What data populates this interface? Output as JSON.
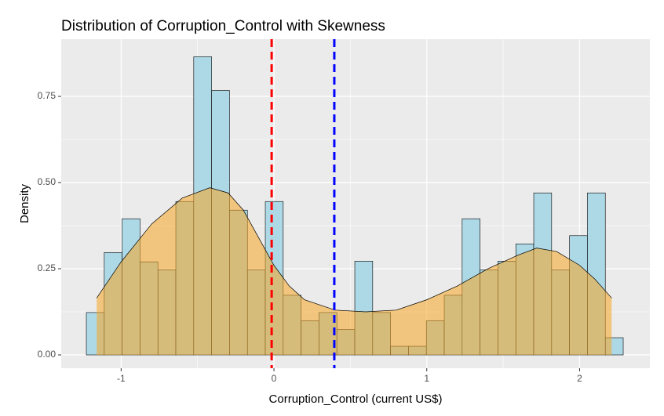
{
  "chart_data": {
    "type": "histogram",
    "title": "Distribution of Corruption_Control with Skewness",
    "x_label": "Corruption_Control (current US$)",
    "y_label": "Density",
    "bins": [
      -1.2275,
      -1.1104,
      -0.9933,
      -0.8762,
      -0.7591,
      -0.642,
      -0.5249,
      -0.4078,
      -0.2907,
      -0.1736,
      -0.0565,
      0.0606,
      0.1777,
      0.2948,
      0.4119,
      0.529,
      0.6461,
      0.7632,
      0.8803,
      0.9974,
      1.1145,
      1.2316,
      1.3487,
      1.4658,
      1.5829,
      1.7,
      1.8171,
      1.9342,
      2.0513,
      2.1684,
      2.2855
    ],
    "values": [
      0.123,
      0.297,
      0.395,
      0.27,
      0.247,
      0.445,
      0.865,
      0.767,
      0.42,
      0.247,
      0.445,
      0.173,
      0.099,
      0.123,
      0.074,
      0.272,
      0.123,
      0.025,
      0.025,
      0.099,
      0.173,
      0.395,
      0.247,
      0.272,
      0.322,
      0.47,
      0.247,
      0.346,
      0.47,
      0.05
    ],
    "color": "#add8e6",
    "density": {
      "color": "#f5a623",
      "x": [
        -1.16,
        -1.0,
        -0.8,
        -0.6,
        -0.42,
        -0.3,
        -0.2,
        -0.1,
        0.0,
        0.1,
        0.2,
        0.4,
        0.6,
        0.8,
        1.0,
        1.2,
        1.4,
        1.6,
        1.72,
        1.85,
        2.0,
        2.1,
        2.21
      ],
      "y": [
        0.165,
        0.27,
        0.38,
        0.455,
        0.485,
        0.47,
        0.42,
        0.34,
        0.26,
        0.2,
        0.16,
        0.13,
        0.125,
        0.13,
        0.16,
        0.2,
        0.25,
        0.29,
        0.31,
        0.3,
        0.26,
        0.22,
        0.165
      ]
    },
    "vlines": [
      {
        "value": -0.015,
        "color": "#ff0000"
      },
      {
        "value": 0.395,
        "color": "#0000ff"
      }
    ],
    "xlim": [
      -1.392,
      2.46
    ],
    "ylim": [
      -0.0386,
      0.916
    ],
    "xticks": [
      -1,
      0,
      1,
      2
    ],
    "yticks": [
      {
        "value": 0,
        "label": "0.00"
      },
      {
        "value": 0.25,
        "label": "0.25"
      },
      {
        "value": 0.5,
        "label": "0.50"
      },
      {
        "value": 0.75,
        "label": "0.75"
      }
    ],
    "grid": true
  }
}
